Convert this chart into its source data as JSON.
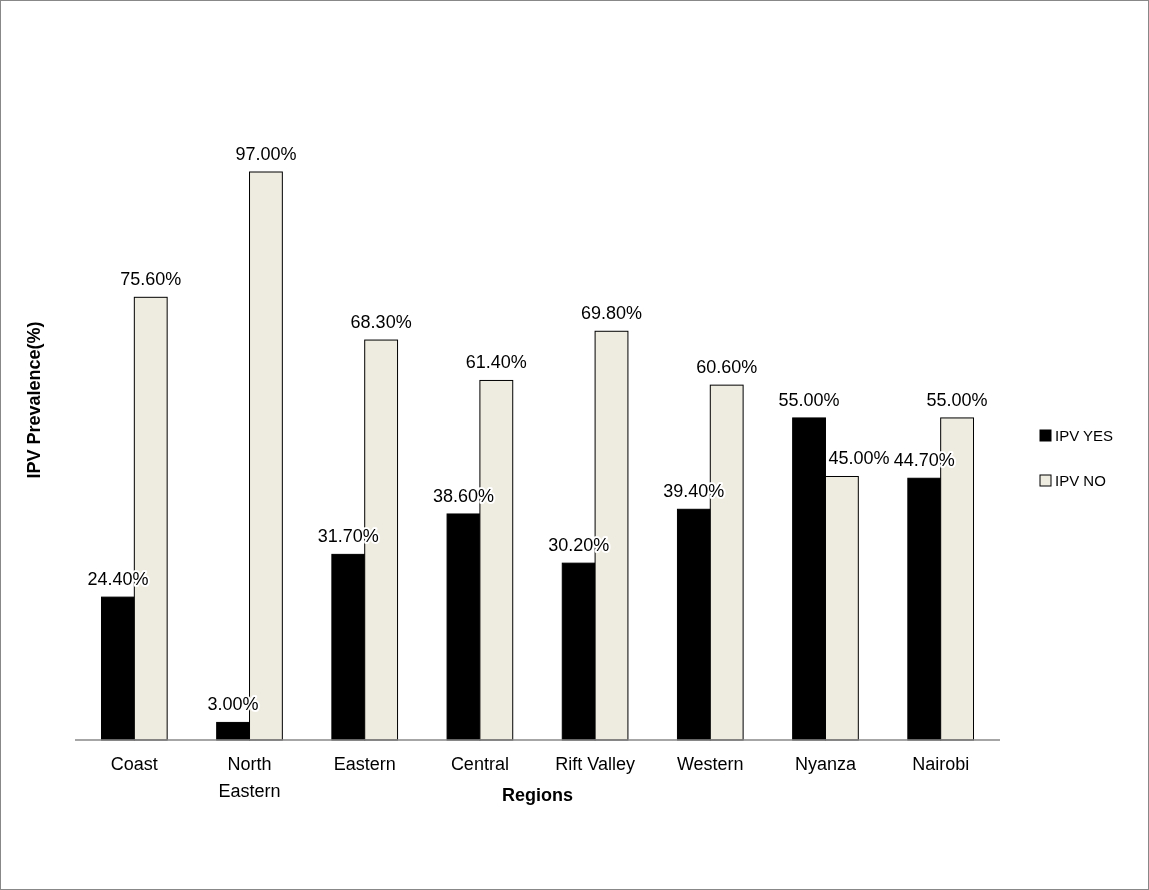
{
  "chart_data": {
    "type": "bar",
    "xlabel": "Regions",
    "ylabel": "IPV Prevalence(%)",
    "categories": [
      "Coast",
      "North Eastern",
      "Eastern",
      "Central",
      "Rift Valley",
      "Western",
      "Nyanza",
      "Nairobi"
    ],
    "series": [
      {
        "name": "IPV YES",
        "color": "#000000",
        "values": [
          24.4,
          3.0,
          31.7,
          38.6,
          30.2,
          39.4,
          55.0,
          44.7
        ],
        "value_labels": [
          "24.40%",
          "3.00%",
          "31.70%",
          "38.60%",
          "30.20%",
          "39.40%",
          "55.00%",
          "44.70%"
        ]
      },
      {
        "name": "IPV NO",
        "color": "#eeebe0",
        "values": [
          75.6,
          97.0,
          68.3,
          61.4,
          69.8,
          60.6,
          45.0,
          55.0
        ],
        "value_labels": [
          "75.60%",
          "97.00%",
          "68.30%",
          "61.40%",
          "69.80%",
          "60.60%",
          "45.00%",
          "55.00%"
        ]
      }
    ],
    "legend": "right"
  }
}
